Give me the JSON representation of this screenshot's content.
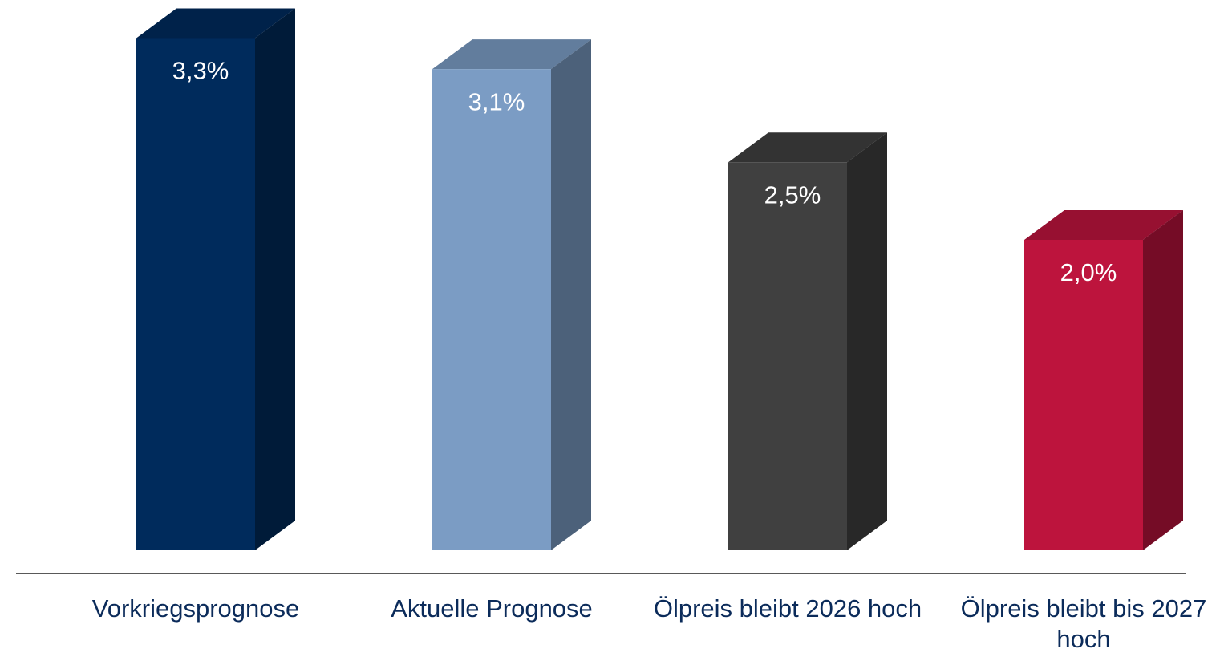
{
  "chart_data": {
    "type": "bar3d",
    "categories": [
      "Vorkriegsprognose",
      "Aktuelle Prognose",
      "Ölpreis bleibt 2026 hoch",
      "Ölpreis bleibt bis 2027 hoch"
    ],
    "values": [
      3.3,
      3.1,
      2.5,
      2.0
    ],
    "value_labels": [
      "3,3%",
      "3,1%",
      "2,5%",
      "2,0%"
    ],
    "colors": [
      "#002b5c",
      "#7b9cc4",
      "#404040",
      "#bd143d"
    ]
  }
}
